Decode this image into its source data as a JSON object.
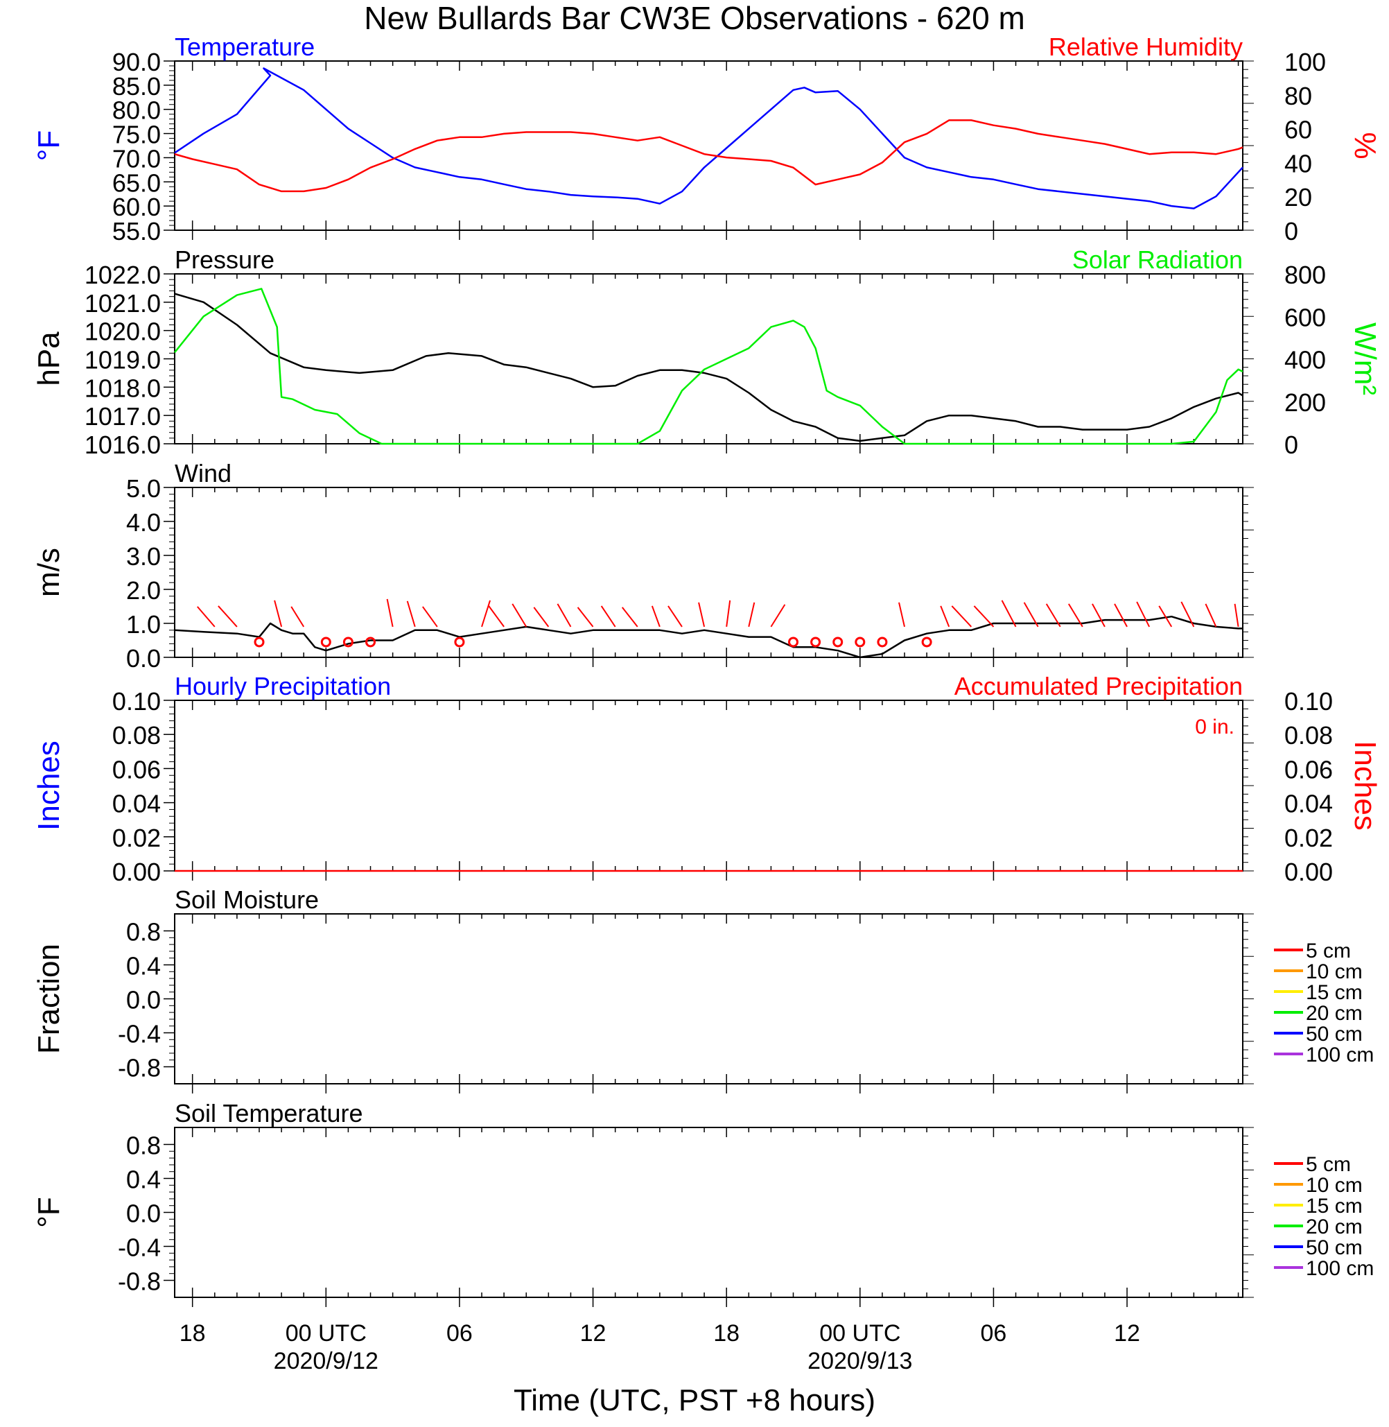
{
  "title": "New Bullards Bar CW3E Observations - 620 m",
  "xlabel": "Time (UTC, PST +8 hours)",
  "colors": {
    "blue": "#0000ff",
    "red": "#ff0000",
    "green": "#00ee00",
    "black": "#000000"
  },
  "time_axis": {
    "start_hour": -6.8,
    "end_hour": 41.2,
    "ticks": [
      {
        "hour": -6,
        "label": "18",
        "sub": ""
      },
      {
        "hour": 0,
        "label": "00 UTC",
        "sub": "2020/9/12"
      },
      {
        "hour": 6,
        "label": "06",
        "sub": ""
      },
      {
        "hour": 12,
        "label": "12",
        "sub": ""
      },
      {
        "hour": 18,
        "label": "18",
        "sub": ""
      },
      {
        "hour": 24,
        "label": "00 UTC",
        "sub": "2020/9/13"
      },
      {
        "hour": 30,
        "label": "06",
        "sub": ""
      },
      {
        "hour": 36,
        "label": "12",
        "sub": ""
      }
    ]
  },
  "chart_data": [
    {
      "type": "line",
      "panel": "temperature_humidity",
      "left_title": "Temperature",
      "right_title": "Relative Humidity",
      "ylabel_left": "°F",
      "ylabel_right": "%",
      "ylim_left": [
        55,
        90
      ],
      "ylim_right": [
        0,
        100
      ],
      "yticks_left": [
        "90.0",
        "85.0",
        "80.0",
        "75.0",
        "70.0",
        "65.0",
        "60.0",
        "55.0"
      ],
      "yticks_right": [
        "100",
        "80",
        "60",
        "40",
        "20",
        "0"
      ],
      "series": [
        {
          "name": "Temperature",
          "axis": "left",
          "color": "#0000ff",
          "x": [
            -6.8,
            -5.5,
            -4,
            -2.5,
            -2.8,
            -1,
            0,
            1,
            2,
            3,
            4,
            5,
            6,
            7,
            8,
            9,
            10,
            11,
            12,
            13,
            14,
            15,
            16,
            17,
            18,
            19,
            20,
            21,
            21.5,
            22,
            23,
            24,
            25,
            26,
            27,
            28,
            29,
            30,
            31,
            32,
            33,
            34,
            35,
            36,
            37,
            38,
            39,
            40,
            41,
            41.2
          ],
          "y": [
            71,
            75,
            79,
            87,
            88.5,
            84,
            80,
            76,
            73,
            70,
            68,
            67,
            66,
            65.5,
            64.5,
            63.5,
            63,
            62.3,
            62,
            61.8,
            61.5,
            60.5,
            63,
            68,
            72,
            76,
            80,
            84,
            84.5,
            83.5,
            83.8,
            80,
            75,
            70,
            68,
            67,
            66,
            65.5,
            64.5,
            63.5,
            63,
            62.5,
            62,
            61.5,
            61,
            60,
            59.5,
            62,
            67,
            68
          ]
        },
        {
          "name": "Relative Humidity",
          "axis": "right",
          "color": "#ff0000",
          "x": [
            -6.8,
            -6,
            -5,
            -4,
            -3,
            -2,
            -1,
            0,
            1,
            2,
            3,
            4,
            5,
            6,
            7,
            8,
            9,
            10,
            11,
            12,
            13,
            14,
            15,
            16,
            17,
            18,
            19,
            20,
            21,
            22,
            23,
            24,
            25,
            26,
            27,
            28,
            29,
            30,
            31,
            32,
            33,
            34,
            35,
            36,
            37,
            38,
            39,
            40,
            41,
            41.2
          ],
          "y": [
            45,
            42,
            39,
            36,
            27,
            23,
            23,
            25,
            30,
            37,
            42,
            48,
            53,
            55,
            55,
            57,
            58,
            58,
            58,
            57,
            55,
            53,
            55,
            50,
            45,
            43,
            42,
            41,
            37,
            27,
            30,
            33,
            40,
            52,
            57,
            65,
            65,
            62,
            60,
            57,
            55,
            53,
            51,
            48,
            45,
            46,
            46,
            45,
            48,
            49
          ]
        }
      ]
    },
    {
      "type": "line",
      "panel": "pressure_solar",
      "left_title": "Pressure",
      "right_title": "Solar Radiation",
      "ylabel_left": "hPa",
      "ylabel_right": "W/m²",
      "ylim_left": [
        1016,
        1022
      ],
      "ylim_right": [
        0,
        800
      ],
      "yticks_left": [
        "1022.0",
        "1021.0",
        "1020.0",
        "1019.0",
        "1018.0",
        "1017.0",
        "1016.0"
      ],
      "yticks_right": [
        "800",
        "600",
        "400",
        "200",
        "0"
      ],
      "series": [
        {
          "name": "Pressure",
          "axis": "left",
          "color": "#000000",
          "x": [
            -6.8,
            -5.5,
            -4,
            -2.5,
            -1,
            0,
            1.5,
            3,
            4.5,
            5.5,
            7,
            8,
            9,
            10,
            11,
            12,
            13,
            14,
            15,
            16,
            17,
            18,
            19,
            20,
            21,
            22,
            23,
            24,
            25,
            26,
            27,
            28,
            29,
            30,
            31,
            32,
            33,
            34,
            35,
            36,
            37,
            38,
            39,
            40,
            41,
            41.2
          ],
          "y": [
            1021.3,
            1021,
            1020.2,
            1019.2,
            1018.7,
            1018.6,
            1018.5,
            1018.6,
            1019.1,
            1019.2,
            1019.1,
            1018.8,
            1018.7,
            1018.5,
            1018.3,
            1018,
            1018.05,
            1018.4,
            1018.6,
            1018.6,
            1018.5,
            1018.3,
            1017.8,
            1017.2,
            1016.8,
            1016.6,
            1016.2,
            1016.1,
            1016.2,
            1016.3,
            1016.8,
            1017,
            1017,
            1016.9,
            1016.8,
            1016.6,
            1016.6,
            1016.5,
            1016.5,
            1016.5,
            1016.6,
            1016.9,
            1017.3,
            1017.6,
            1017.8,
            1017.7
          ]
        },
        {
          "name": "Solar Radiation",
          "axis": "right",
          "color": "#00ee00",
          "x": [
            -6.8,
            -5.5,
            -4,
            -2.9,
            -2.2,
            -2,
            -1.5,
            -0.5,
            0.5,
            1.5,
            2.5,
            12,
            14,
            15,
            16,
            17,
            18,
            19,
            20,
            21,
            21.5,
            22,
            22.5,
            23,
            24,
            25,
            26,
            27,
            38,
            39,
            40,
            40.5,
            41,
            41.2
          ],
          "y": [
            430,
            600,
            700,
            730,
            550,
            220,
            210,
            160,
            140,
            50,
            0,
            0,
            0,
            60,
            250,
            350,
            400,
            450,
            550,
            580,
            550,
            450,
            250,
            220,
            180,
            80,
            0,
            0,
            0,
            10,
            150,
            300,
            350,
            340
          ]
        }
      ]
    },
    {
      "type": "line",
      "panel": "wind",
      "left_title": "Wind",
      "ylabel_left": "m/s",
      "ylim_left": [
        0,
        5
      ],
      "yticks_left": [
        "5.0",
        "4.0",
        "3.0",
        "2.0",
        "1.0",
        "0.0"
      ],
      "series": [
        {
          "name": "Wind",
          "axis": "left",
          "color": "#000000",
          "x": [
            -6.8,
            -5.5,
            -4,
            -3,
            -2.5,
            -2,
            -1.5,
            -1,
            -0.5,
            0,
            1,
            2,
            3,
            4,
            5,
            6,
            7,
            8,
            9,
            10,
            11,
            12,
            13,
            14,
            15,
            16,
            17,
            18,
            19,
            20,
            21,
            22,
            23,
            24,
            25,
            26,
            27,
            28,
            29,
            30,
            31,
            32,
            33,
            34,
            35,
            36,
            37,
            38,
            39,
            40,
            41,
            41.2
          ],
          "y": [
            0.8,
            0.75,
            0.7,
            0.6,
            1.0,
            0.8,
            0.7,
            0.7,
            0.3,
            0.2,
            0.4,
            0.5,
            0.5,
            0.8,
            0.8,
            0.6,
            0.7,
            0.8,
            0.9,
            0.8,
            0.7,
            0.8,
            0.8,
            0.8,
            0.8,
            0.7,
            0.8,
            0.7,
            0.6,
            0.6,
            0.3,
            0.3,
            0.2,
            0.0,
            0.1,
            0.5,
            0.7,
            0.8,
            0.8,
            1.0,
            1.0,
            1.0,
            1.0,
            1.0,
            1.1,
            1.1,
            1.1,
            1.2,
            1.0,
            0.9,
            0.85,
            0.85
          ]
        }
      ],
      "calm_hours": [
        -3,
        0,
        1,
        2,
        6,
        21,
        22,
        23,
        24,
        25,
        27
      ],
      "barbs": [
        {
          "hour": -5,
          "dx": -25,
          "dy": -29
        },
        {
          "hour": -4,
          "dx": -27,
          "dy": -30
        },
        {
          "hour": -2,
          "dx": -10,
          "dy": -38
        },
        {
          "hour": -1,
          "dx": -18,
          "dy": -29
        },
        {
          "hour": 3,
          "dx": -8,
          "dy": -40
        },
        {
          "hour": 4,
          "dx": -11,
          "dy": -37
        },
        {
          "hour": 5,
          "dx": -21,
          "dy": -29
        },
        {
          "hour": 7,
          "dx": 12,
          "dy": -38
        },
        {
          "hour": 8,
          "dx": -22,
          "dy": -30
        },
        {
          "hour": 9,
          "dx": -20,
          "dy": -33
        },
        {
          "hour": 10,
          "dx": -21,
          "dy": -28
        },
        {
          "hour": 11,
          "dx": -19,
          "dy": -33
        },
        {
          "hour": 12,
          "dx": -22,
          "dy": -28
        },
        {
          "hour": 13,
          "dx": -20,
          "dy": -30
        },
        {
          "hour": 14,
          "dx": -22,
          "dy": -28
        },
        {
          "hour": 15,
          "dx": -11,
          "dy": -30
        },
        {
          "hour": 16,
          "dx": -20,
          "dy": -30
        },
        {
          "hour": 17,
          "dx": -8,
          "dy": -35
        },
        {
          "hour": 18,
          "dx": 5,
          "dy": -38
        },
        {
          "hour": 19,
          "dx": 8,
          "dy": -35
        },
        {
          "hour": 20,
          "dx": 20,
          "dy": -32
        },
        {
          "hour": 26,
          "dx": -8,
          "dy": -35
        },
        {
          "hour": 28,
          "dx": -12,
          "dy": -30
        },
        {
          "hour": 29,
          "dx": -28,
          "dy": -30
        },
        {
          "hour": 30,
          "dx": -28,
          "dy": -30
        },
        {
          "hour": 31,
          "dx": -20,
          "dy": -38
        },
        {
          "hour": 32,
          "dx": -20,
          "dy": -35
        },
        {
          "hour": 33,
          "dx": -20,
          "dy": -33
        },
        {
          "hour": 34,
          "dx": -20,
          "dy": -33
        },
        {
          "hour": 35,
          "dx": -18,
          "dy": -33
        },
        {
          "hour": 36,
          "dx": -18,
          "dy": -33
        },
        {
          "hour": 37,
          "dx": -18,
          "dy": -36
        },
        {
          "hour": 38,
          "dx": -18,
          "dy": -30
        },
        {
          "hour": 39,
          "dx": -18,
          "dy": -36
        },
        {
          "hour": 40,
          "dx": -15,
          "dy": -33
        },
        {
          "hour": 41,
          "dx": -5,
          "dy": -33
        }
      ]
    },
    {
      "type": "line",
      "panel": "precipitation",
      "left_title": "Hourly Precipitation",
      "right_title": "Accumulated Precipitation",
      "annotation": "0 in.",
      "ylabel_left": "Inches",
      "ylabel_right": "Inches",
      "ylim_left": [
        0,
        0.1
      ],
      "ylim_right": [
        0,
        0.1
      ],
      "yticks_left": [
        "0.10",
        "0.08",
        "0.06",
        "0.04",
        "0.02",
        "0.00"
      ],
      "yticks_right": [
        "0.10",
        "0.08",
        "0.06",
        "0.04",
        "0.02",
        "0.00"
      ],
      "series": [
        {
          "name": "Accumulated Precipitation",
          "axis": "right",
          "color": "#ff0000",
          "x": [
            -6.8,
            41.2
          ],
          "y": [
            0,
            0
          ]
        }
      ]
    },
    {
      "type": "line",
      "panel": "soil_moisture",
      "left_title": "Soil Moisture",
      "ylabel_left": "Fraction",
      "ylim_left": [
        -1,
        1
      ],
      "yticks_left": [
        "0.8",
        "0.4",
        "0.0",
        "-0.4",
        "-0.8"
      ],
      "legend": [
        {
          "name": "5 cm",
          "color": "#ff0000"
        },
        {
          "name": "10 cm",
          "color": "#ff9900"
        },
        {
          "name": "15 cm",
          "color": "#ffee00"
        },
        {
          "name": "20 cm",
          "color": "#00ee00"
        },
        {
          "name": "50 cm",
          "color": "#0000ff"
        },
        {
          "name": "100 cm",
          "color": "#aa33dd"
        }
      ],
      "series": []
    },
    {
      "type": "line",
      "panel": "soil_temperature",
      "left_title": "Soil Temperature",
      "ylabel_left": "°F",
      "ylim_left": [
        -1,
        1
      ],
      "yticks_left": [
        "0.8",
        "0.4",
        "0.0",
        "-0.4",
        "-0.8"
      ],
      "legend": [
        {
          "name": "5 cm",
          "color": "#ff0000"
        },
        {
          "name": "10 cm",
          "color": "#ff9900"
        },
        {
          "name": "15 cm",
          "color": "#ffee00"
        },
        {
          "name": "20 cm",
          "color": "#00ee00"
        },
        {
          "name": "50 cm",
          "color": "#0000ff"
        },
        {
          "name": "100 cm",
          "color": "#aa33dd"
        }
      ],
      "series": []
    }
  ]
}
